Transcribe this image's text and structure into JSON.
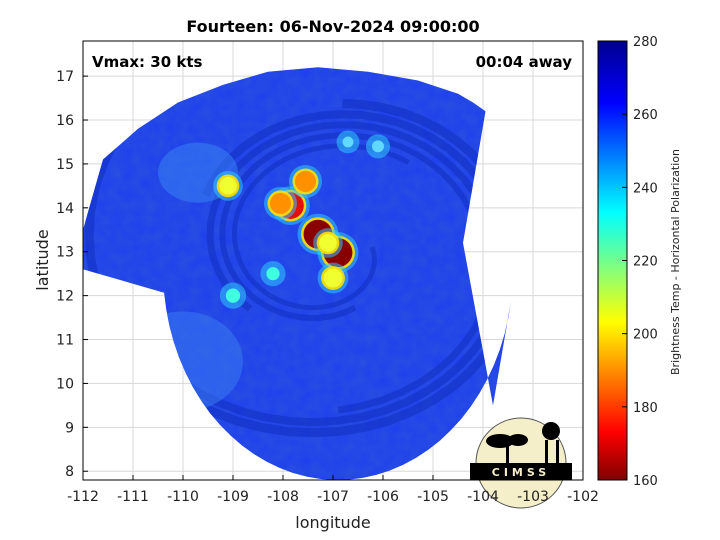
{
  "chart_data": {
    "type": "heatmap",
    "title": "Fourteen: 06-Nov-2024 09:00:00",
    "xlabel": "longitude",
    "ylabel": "latitude",
    "xlim": [
      -112,
      -102
    ],
    "ylim": [
      7.8,
      17.8
    ],
    "x_ticks": [
      -112,
      -111,
      -110,
      -109,
      -108,
      -107,
      -106,
      -105,
      -104,
      -103,
      -102
    ],
    "y_ticks": [
      8,
      9,
      10,
      11,
      12,
      13,
      14,
      15,
      16,
      17
    ],
    "x_tick_labels": [
      "-112",
      "-111",
      "-110",
      "-109",
      "-108",
      "-107",
      "-106",
      "-105",
      "-104",
      "-103",
      "-102"
    ],
    "y_tick_labels": [
      "8",
      "9",
      "10",
      "11",
      "12",
      "13",
      "14",
      "15",
      "16",
      "17"
    ],
    "grid": true,
    "colorbar": {
      "label": "Brightness Temp - Horizontal Polarization",
      "range": [
        160,
        280
      ],
      "ticks": [
        160,
        180,
        200,
        220,
        240,
        260,
        280
      ],
      "tick_labels": [
        "160",
        "180",
        "200",
        "220",
        "240",
        "260",
        "280"
      ],
      "colormap": "jet-reversed"
    },
    "swath_edge_lon": [
      -112,
      -111.6,
      -110.9,
      -110.1,
      -109.2,
      -108.3,
      -107.3,
      -106.3,
      -105.3,
      -104.5,
      -104.2,
      -103.95
    ],
    "swath_edge_lat": [
      13.5,
      15.1,
      15.8,
      16.4,
      16.8,
      17.1,
      17.2,
      17.1,
      16.9,
      16.6,
      16.4,
      16.2
    ],
    "convective_cells": [
      {
        "lon": -107.3,
        "lat": 13.4,
        "min_tb": 165
      },
      {
        "lon": -106.9,
        "lat": 12.98,
        "min_tb": 165
      },
      {
        "lon": -107.85,
        "lat": 14.05,
        "min_tb": 175
      },
      {
        "lon": -107.55,
        "lat": 14.6,
        "min_tb": 200
      },
      {
        "lon": -107.1,
        "lat": 13.2,
        "min_tb": 215
      },
      {
        "lon": -108.05,
        "lat": 14.1,
        "min_tb": 200
      },
      {
        "lon": -109.1,
        "lat": 14.5,
        "min_tb": 215
      },
      {
        "lon": -109.0,
        "lat": 12.0,
        "min_tb": 230
      },
      {
        "lon": -108.2,
        "lat": 12.5,
        "min_tb": 235
      },
      {
        "lon": -106.1,
        "lat": 15.4,
        "min_tb": 240
      },
      {
        "lon": -106.7,
        "lat": 15.5,
        "min_tb": 245
      },
      {
        "lon": -107.0,
        "lat": 12.4,
        "min_tb": 210
      }
    ],
    "background_tb": 258
  },
  "annotations": {
    "vmax": "Vmax: 30 kts",
    "time_away": "00:04 away"
  },
  "logo": {
    "text": "CIMSS"
  },
  "colors": {
    "background_sea": "#1e40f0",
    "cold_ring": "#102fc0",
    "plot_frame": "#000000",
    "grid": "#d8d8d8"
  }
}
